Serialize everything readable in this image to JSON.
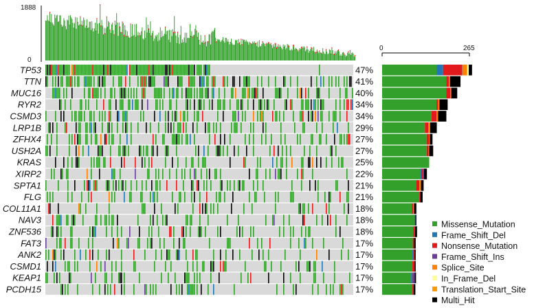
{
  "chart_data": {
    "type": "heatmap",
    "tmb_axis": {
      "ymax": 1888,
      "ymin": 0,
      "tick_labels": [
        "1888",
        "0"
      ]
    },
    "gene_bar_axis": {
      "xmin": 0,
      "xmax": 265,
      "tick_labels": [
        "0",
        "265"
      ]
    },
    "genes": [
      {
        "name": "TP53",
        "pct": "47%",
        "counts": {
          "Missense_Mutation": 165,
          "Frame_Shift_Del": 20,
          "Nonsense_Mutation": 55,
          "Frame_Shift_Ins": 3,
          "Splice_Site": 15,
          "In_Frame_Del": 5,
          "Translation_Start_Site": 0,
          "Multi_Hit": 10
        }
      },
      {
        "name": "TTN",
        "pct": "41%",
        "counts": {
          "Missense_Mutation": 195,
          "Frame_Shift_Del": 0,
          "Nonsense_Mutation": 8,
          "Frame_Shift_Ins": 0,
          "Splice_Site": 3,
          "In_Frame_Del": 0,
          "Translation_Start_Site": 0,
          "Multi_Hit": 32
        }
      },
      {
        "name": "MUC16",
        "pct": "40%",
        "counts": {
          "Missense_Mutation": 195,
          "Frame_Shift_Del": 0,
          "Nonsense_Mutation": 12,
          "Frame_Shift_Ins": 0,
          "Splice_Site": 3,
          "In_Frame_Del": 0,
          "Translation_Start_Site": 0,
          "Multi_Hit": 18
        }
      },
      {
        "name": "RYR2",
        "pct": "34%",
        "counts": {
          "Missense_Mutation": 165,
          "Frame_Shift_Del": 0,
          "Nonsense_Mutation": 5,
          "Frame_Shift_Ins": 0,
          "Splice_Site": 4,
          "In_Frame_Del": 0,
          "Translation_Start_Site": 0,
          "Multi_Hit": 25
        }
      },
      {
        "name": "CSMD3",
        "pct": "34%",
        "counts": {
          "Missense_Mutation": 150,
          "Frame_Shift_Del": 0,
          "Nonsense_Mutation": 15,
          "Frame_Shift_Ins": 0,
          "Splice_Site": 5,
          "In_Frame_Del": 0,
          "Translation_Start_Site": 0,
          "Multi_Hit": 25
        }
      },
      {
        "name": "LRP1B",
        "pct": "29%",
        "counts": {
          "Missense_Mutation": 130,
          "Frame_Shift_Del": 0,
          "Nonsense_Mutation": 10,
          "Frame_Shift_Ins": 0,
          "Splice_Site": 6,
          "In_Frame_Del": 0,
          "Translation_Start_Site": 0,
          "Multi_Hit": 20
        }
      },
      {
        "name": "ZFHX4",
        "pct": "27%",
        "counts": {
          "Missense_Mutation": 135,
          "Frame_Shift_Del": 0,
          "Nonsense_Mutation": 8,
          "Frame_Shift_Ins": 0,
          "Splice_Site": 2,
          "In_Frame_Del": 0,
          "Translation_Start_Site": 0,
          "Multi_Hit": 8
        }
      },
      {
        "name": "USH2A",
        "pct": "27%",
        "counts": {
          "Missense_Mutation": 135,
          "Frame_Shift_Del": 0,
          "Nonsense_Mutation": 6,
          "Frame_Shift_Ins": 0,
          "Splice_Site": 2,
          "In_Frame_Del": 0,
          "Translation_Start_Site": 0,
          "Multi_Hit": 12
        }
      },
      {
        "name": "KRAS",
        "pct": "25%",
        "counts": {
          "Missense_Mutation": 143,
          "Frame_Shift_Del": 0,
          "Nonsense_Mutation": 0,
          "Frame_Shift_Ins": 0,
          "Splice_Site": 0,
          "In_Frame_Del": 0,
          "Translation_Start_Site": 0,
          "Multi_Hit": 0
        }
      },
      {
        "name": "XIRP2",
        "pct": "22%",
        "counts": {
          "Missense_Mutation": 115,
          "Frame_Shift_Del": 4,
          "Nonsense_Mutation": 5,
          "Frame_Shift_Ins": 3,
          "Splice_Site": 0,
          "In_Frame_Del": 0,
          "Translation_Start_Site": 0,
          "Multi_Hit": 9
        }
      },
      {
        "name": "SPTA1",
        "pct": "21%",
        "counts": {
          "Missense_Mutation": 103,
          "Frame_Shift_Del": 0,
          "Nonsense_Mutation": 10,
          "Frame_Shift_Ins": 0,
          "Splice_Site": 5,
          "In_Frame_Del": 0,
          "Translation_Start_Site": 0,
          "Multi_Hit": 8
        }
      },
      {
        "name": "FLG",
        "pct": "21%",
        "counts": {
          "Missense_Mutation": 113,
          "Frame_Shift_Del": 0,
          "Nonsense_Mutation": 3,
          "Frame_Shift_Ins": 0,
          "Splice_Site": 0,
          "In_Frame_Del": 0,
          "Translation_Start_Site": 0,
          "Multi_Hit": 7
        }
      },
      {
        "name": "COL11A1",
        "pct": "18%",
        "counts": {
          "Missense_Mutation": 90,
          "Frame_Shift_Del": 0,
          "Nonsense_Mutation": 4,
          "Frame_Shift_Ins": 0,
          "Splice_Site": 3,
          "In_Frame_Del": 0,
          "Translation_Start_Site": 0,
          "Multi_Hit": 7
        }
      },
      {
        "name": "NAV3",
        "pct": "18%",
        "counts": {
          "Missense_Mutation": 98,
          "Frame_Shift_Del": 3,
          "Nonsense_Mutation": 0,
          "Frame_Shift_Ins": 0,
          "Splice_Site": 0,
          "In_Frame_Del": 0,
          "Translation_Start_Site": 0,
          "Multi_Hit": 3
        }
      },
      {
        "name": "ZNF536",
        "pct": "18%",
        "counts": {
          "Missense_Mutation": 95,
          "Frame_Shift_Del": 0,
          "Nonsense_Mutation": 5,
          "Frame_Shift_Ins": 0,
          "Splice_Site": 0,
          "In_Frame_Del": 0,
          "Translation_Start_Site": 0,
          "Multi_Hit": 6
        }
      },
      {
        "name": "FAT3",
        "pct": "17%",
        "counts": {
          "Missense_Mutation": 93,
          "Frame_Shift_Del": 0,
          "Nonsense_Mutation": 4,
          "Frame_Shift_Ins": 0,
          "Splice_Site": 0,
          "In_Frame_Del": 0,
          "Translation_Start_Site": 0,
          "Multi_Hit": 5
        }
      },
      {
        "name": "ANK2",
        "pct": "17%",
        "counts": {
          "Missense_Mutation": 92,
          "Frame_Shift_Del": 3,
          "Nonsense_Mutation": 3,
          "Frame_Shift_Ins": 0,
          "Splice_Site": 0,
          "In_Frame_Del": 0,
          "Translation_Start_Site": 0,
          "Multi_Hit": 4
        }
      },
      {
        "name": "CSMD1",
        "pct": "17%",
        "counts": {
          "Missense_Mutation": 92,
          "Frame_Shift_Del": 0,
          "Nonsense_Mutation": 6,
          "Frame_Shift_Ins": 0,
          "Splice_Site": 0,
          "In_Frame_Del": 0,
          "Translation_Start_Site": 0,
          "Multi_Hit": 4
        }
      },
      {
        "name": "KEAP1",
        "pct": "17%",
        "counts": {
          "Missense_Mutation": 88,
          "Frame_Shift_Del": 5,
          "Nonsense_Mutation": 3,
          "Frame_Shift_Ins": 3,
          "Splice_Site": 0,
          "In_Frame_Del": 0,
          "Translation_Start_Site": 0,
          "Multi_Hit": 4
        }
      },
      {
        "name": "PCDH15",
        "pct": "17%",
        "counts": {
          "Missense_Mutation": 92,
          "Frame_Shift_Del": 0,
          "Nonsense_Mutation": 4,
          "Frame_Shift_Ins": 0,
          "Splice_Site": 0,
          "In_Frame_Del": 0,
          "Translation_Start_Site": 0,
          "Multi_Hit": 5
        }
      }
    ],
    "legend": [
      {
        "name": "Missense_Mutation",
        "color": "#33a02c"
      },
      {
        "name": "Frame_Shift_Del",
        "color": "#1f78b4"
      },
      {
        "name": "Nonsense_Mutation",
        "color": "#e31a1c"
      },
      {
        "name": "Frame_Shift_Ins",
        "color": "#6a3d9a"
      },
      {
        "name": "Splice_Site",
        "color": "#ff7f00"
      },
      {
        "name": "In_Frame_Del",
        "color": "#ffff99"
      },
      {
        "name": "Translation_Start_Site",
        "color": "#ff9900"
      },
      {
        "name": "Multi_Hit",
        "color": "#000000"
      }
    ],
    "legend_position": "bottom-right",
    "matrix_background_color": "#d9d9d9"
  }
}
